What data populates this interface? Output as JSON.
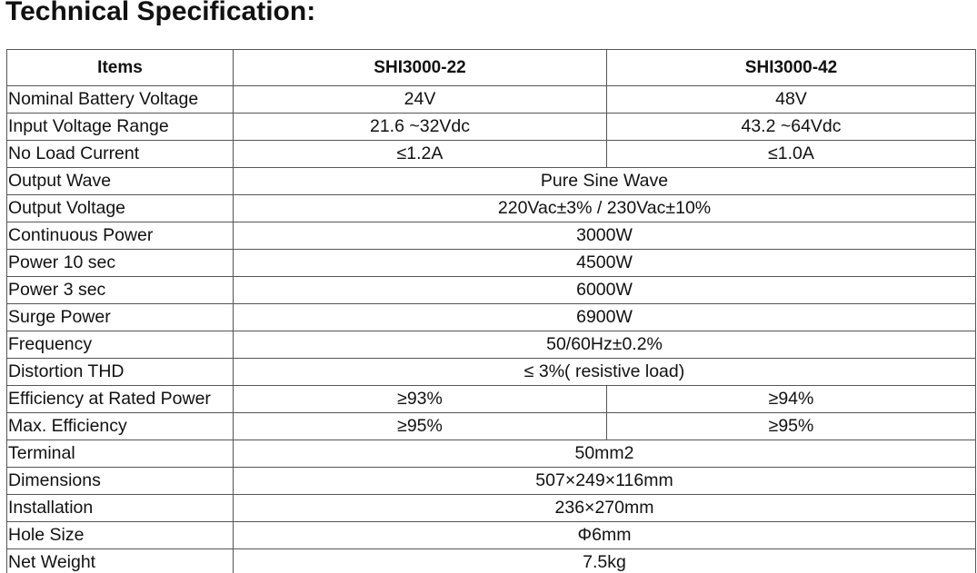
{
  "title": "Technical Specification:",
  "table": {
    "header": [
      "Items",
      "SHI3000-22",
      "SHI3000-42"
    ],
    "rows": [
      {
        "label": "Nominal Battery Voltage",
        "values": [
          "24V",
          "48V"
        ]
      },
      {
        "label": "Input Voltage Range",
        "values": [
          "21.6 ~32Vdc",
          "43.2 ~64Vdc"
        ]
      },
      {
        "label": "No Load Current",
        "values": [
          "≤1.2A",
          "≤1.0A"
        ]
      },
      {
        "label": "Output Wave",
        "values": [
          "Pure Sine Wave"
        ]
      },
      {
        "label": "Output Voltage",
        "values": [
          "220Vac±3% / 230Vac±10%"
        ]
      },
      {
        "label": "Continuous Power",
        "values": [
          "3000W"
        ]
      },
      {
        "label": "Power 10 sec",
        "values": [
          "4500W"
        ]
      },
      {
        "label": "Power 3 sec",
        "values": [
          "6000W"
        ]
      },
      {
        "label": "Surge Power",
        "values": [
          "6900W"
        ]
      },
      {
        "label": "Frequency",
        "values": [
          "50/60Hz±0.2%"
        ]
      },
      {
        "label": "Distortion THD",
        "values": [
          "≤ 3%( resistive load)"
        ]
      },
      {
        "label": "Efficiency at Rated Power",
        "values": [
          "≥93%",
          "≥94%"
        ]
      },
      {
        "label": "Max. Efficiency",
        "values": [
          "≥95%",
          "≥95%"
        ]
      },
      {
        "label": "Terminal",
        "values": [
          "50mm2"
        ]
      },
      {
        "label": "Dimensions",
        "values": [
          "507×249×116mm"
        ]
      },
      {
        "label": "Installation",
        "values": [
          "236×270mm"
        ]
      },
      {
        "label": "Hole Size",
        "values": [
          "Φ6mm"
        ]
      },
      {
        "label": "Net Weight",
        "values": [
          "7.5kg"
        ]
      }
    ]
  }
}
